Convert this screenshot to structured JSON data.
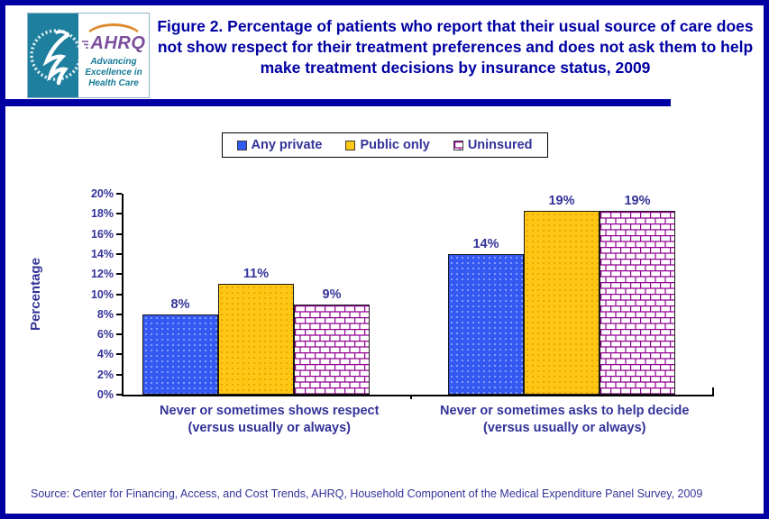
{
  "header": {
    "title": "Figure 2. Percentage of patients who report that their usual source of care does not show respect for their treatment preferences and does not ask them to help make treatment decisions by insurance status, 2009",
    "logo": {
      "ahrq_acronym": "AHRQ",
      "ahrq_tagline": "Advancing Excellence in Health Care"
    }
  },
  "chart_data": {
    "type": "bar",
    "title": "",
    "xlabel": "",
    "ylabel": "Percentage",
    "ylim": [
      0,
      20
    ],
    "ytick_step": 2,
    "y_tick_labels": [
      "0%",
      "2%",
      "4%",
      "6%",
      "8%",
      "10%",
      "12%",
      "14%",
      "16%",
      "18%",
      "20%"
    ],
    "grid": false,
    "legend_position": "top",
    "categories": [
      {
        "line1": "Never or sometimes shows respect",
        "line2": "(versus usually or always)"
      },
      {
        "line1": "Never or sometimes asks to help decide",
        "line2": "(versus usually or always)"
      }
    ],
    "series": [
      {
        "name": "Any private",
        "values": [
          8,
          14
        ],
        "labels": [
          "8%",
          "14%"
        ],
        "color": "#3359F2",
        "pattern": "solid"
      },
      {
        "name": "Public only",
        "values": [
          11,
          19
        ],
        "labels": [
          "11%",
          "19%"
        ],
        "color": "#FFC613",
        "pattern": "solid"
      },
      {
        "name": "Uninsured",
        "values": [
          9,
          19
        ],
        "labels": [
          "9%",
          "19%"
        ],
        "color": "#920092",
        "pattern": "brick"
      }
    ]
  },
  "footer": {
    "source": "Source: Center for Financing, Access, and Cost Trends, AHRQ, Household Component of the Medical Expenditure Panel Survey,  2009"
  },
  "colors": {
    "frame_border": "#0000A3",
    "title_text": "#0000A3",
    "label_text": "#333399",
    "bar_private": "#3359F2",
    "bar_public": "#FFC613",
    "brick_line": "#920092",
    "hhs_teal": "#1E7F9E",
    "ahrq_purple": "#7A4E9C",
    "arc_orange": "#DD8A2E"
  }
}
